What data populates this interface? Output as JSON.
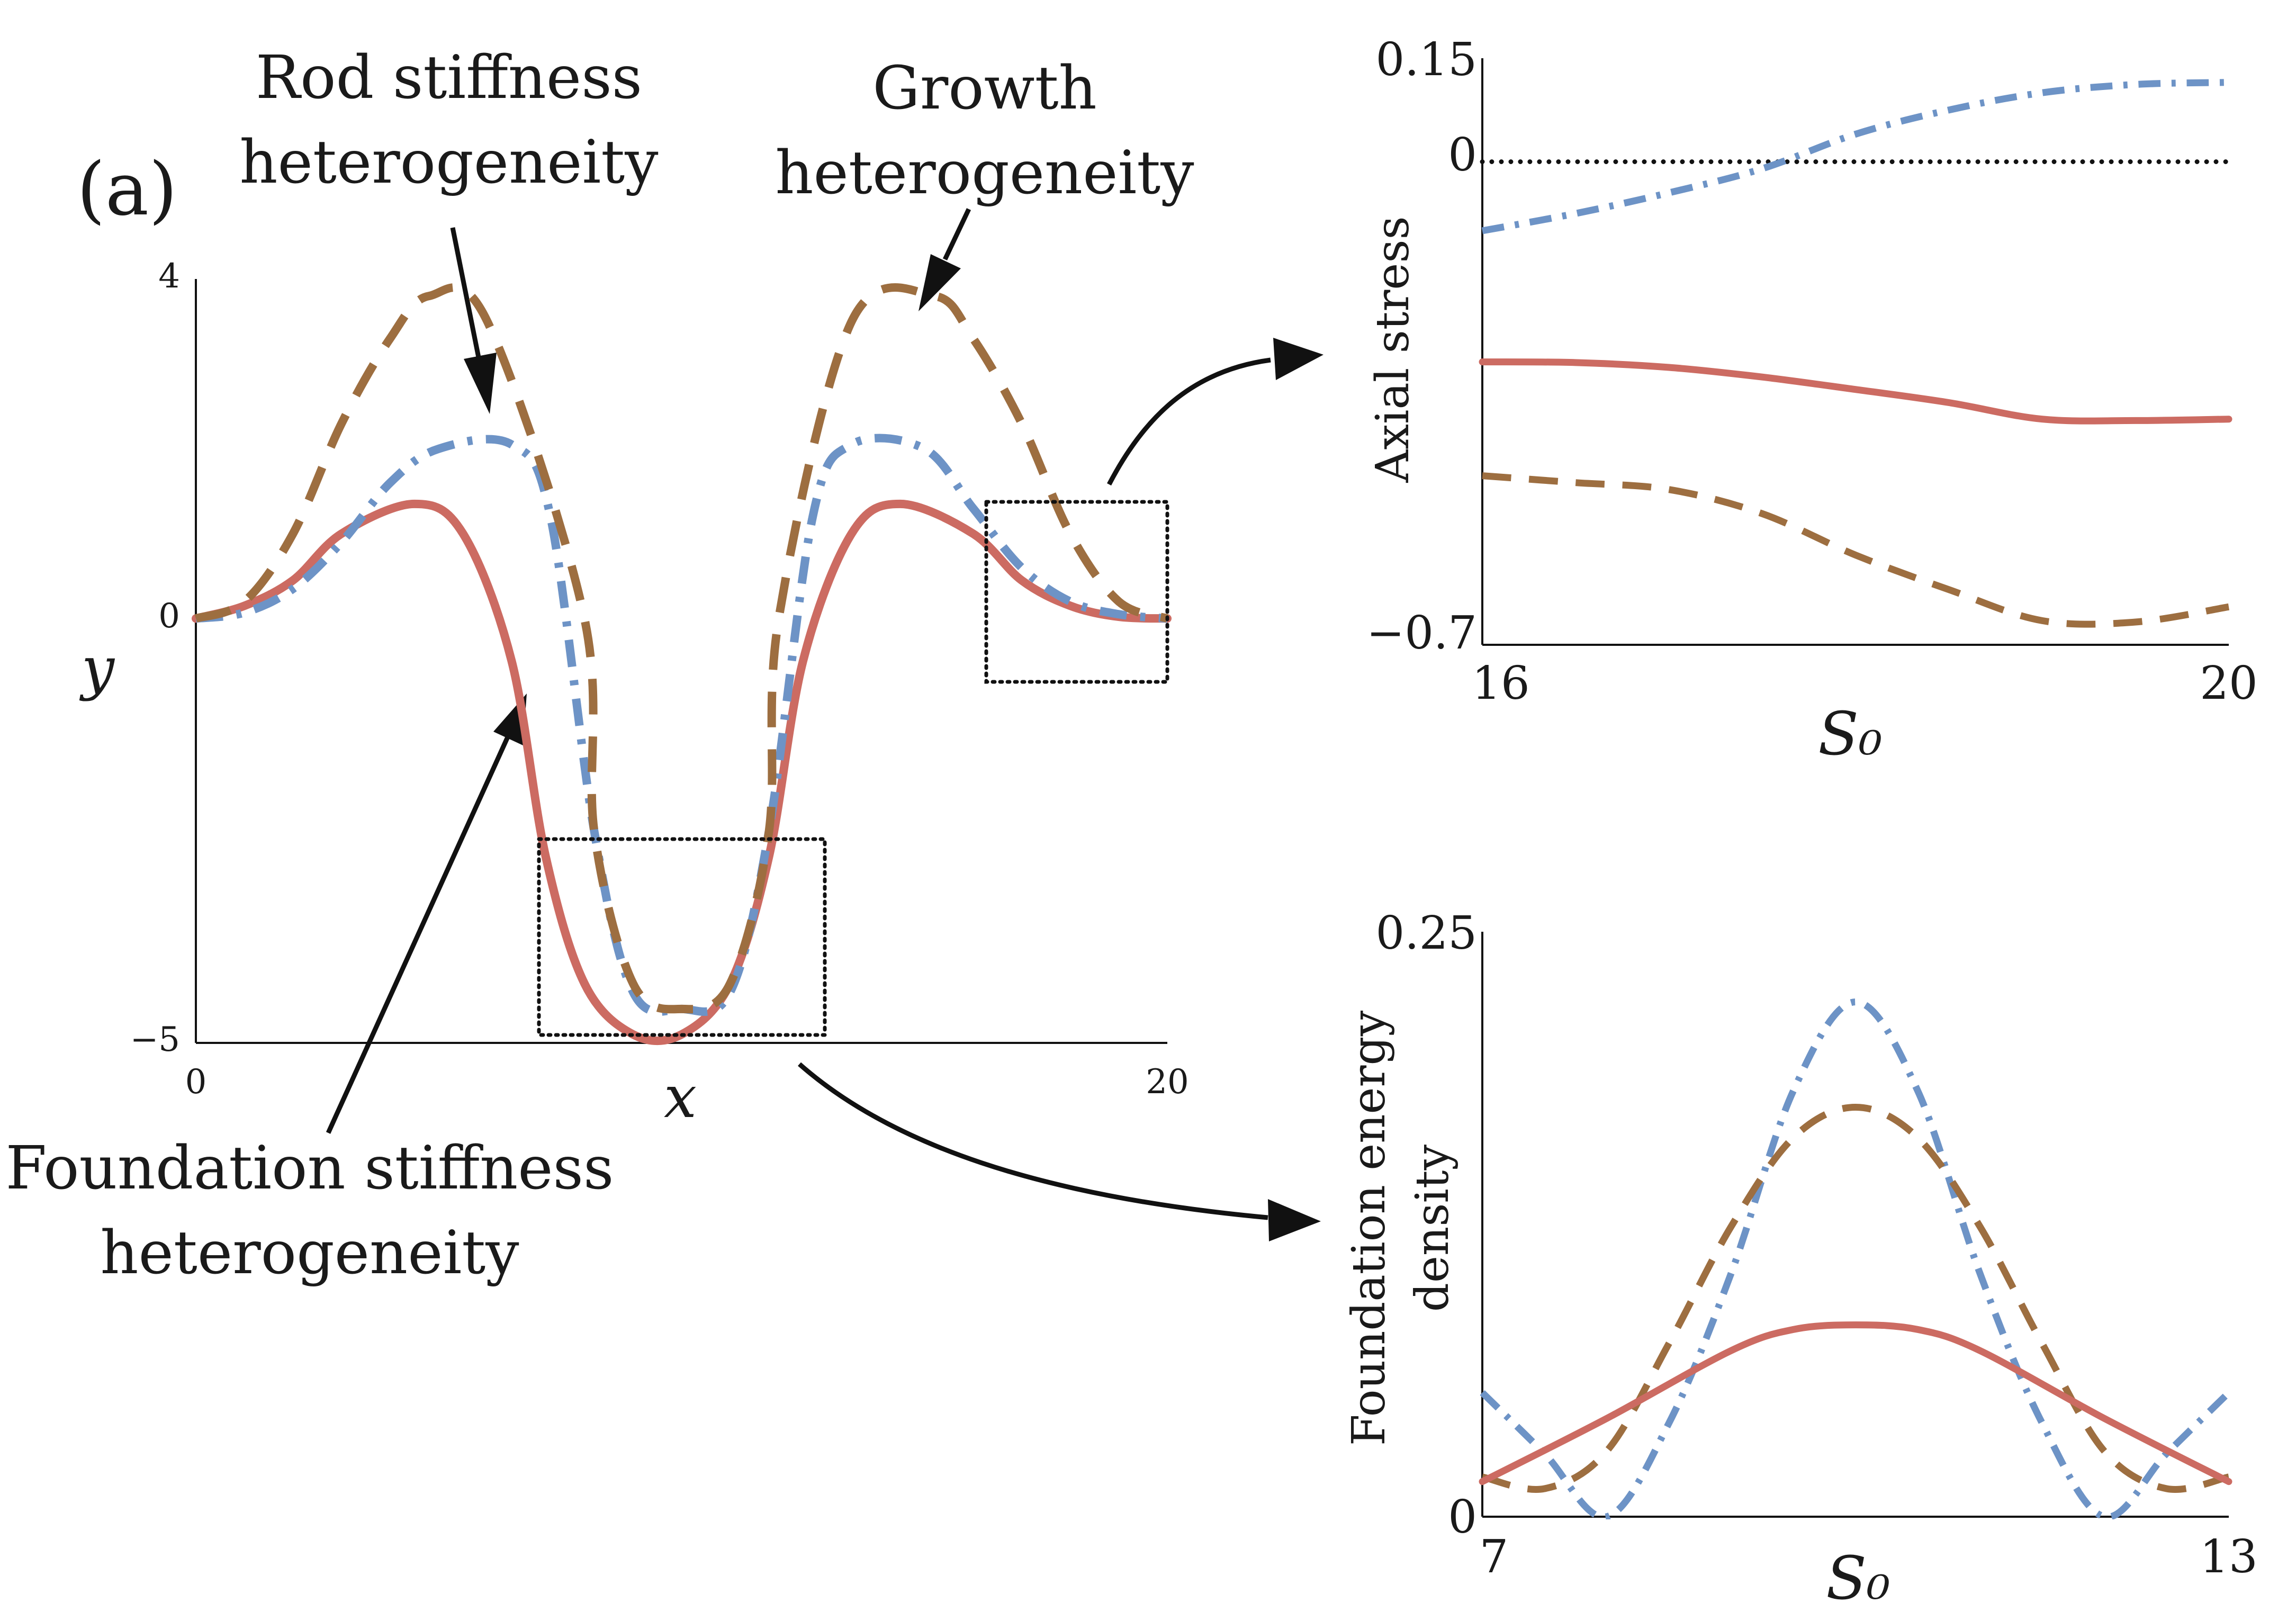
{
  "figure": {
    "panel_label": "(a)",
    "colors": {
      "foundation": "#cc6b62",
      "rod": "#6d93c6",
      "growth": "#9d6e40",
      "reference": "#111111"
    },
    "annotations": {
      "rod": [
        "Rod stiffness",
        "heterogeneity"
      ],
      "growth": [
        "Growth",
        "heterogeneity"
      ],
      "foundation": [
        "Foundation stiffness",
        "heterogeneity"
      ]
    }
  },
  "chart_data": [
    {
      "id": "main",
      "type": "line",
      "title": "",
      "xlabel": "x",
      "ylabel": "y",
      "xlim": [
        0,
        20
      ],
      "ylim": [
        -5,
        4
      ],
      "xticks": [
        "0",
        "20"
      ],
      "yticks": [
        "4",
        "0",
        "−5"
      ],
      "series": [
        {
          "key": "foundation",
          "color": "#cc6b62",
          "style": "solid",
          "points": [
            [
              0,
              0
            ],
            [
              1,
              0.15
            ],
            [
              2,
              0.45
            ],
            [
              3,
              1.0
            ],
            [
              4.5,
              1.35
            ],
            [
              5.5,
              1.0
            ],
            [
              6.5,
              -0.5
            ],
            [
              7.2,
              -2.8
            ],
            [
              8,
              -4.3
            ],
            [
              9,
              -4.9
            ],
            [
              10,
              -4.9
            ],
            [
              11,
              -4.3
            ],
            [
              11.8,
              -2.8
            ],
            [
              12.5,
              -0.5
            ],
            [
              13.5,
              1.0
            ],
            [
              14.5,
              1.35
            ],
            [
              16,
              1.0
            ],
            [
              17,
              0.45
            ],
            [
              18,
              0.15
            ],
            [
              19,
              0.02
            ],
            [
              20,
              0
            ]
          ]
        },
        {
          "key": "rod",
          "color": "#6d93c6",
          "style": "dashdot",
          "points": [
            [
              0,
              0
            ],
            [
              1,
              0.07
            ],
            [
              2,
              0.35
            ],
            [
              3,
              0.9
            ],
            [
              4,
              1.6
            ],
            [
              5,
              2.0
            ],
            [
              6.5,
              2.05
            ],
            [
              7.3,
              1.2
            ],
            [
              8.2,
              -2.5
            ],
            [
              9,
              -4.4
            ],
            [
              10,
              -4.6
            ],
            [
              11,
              -4.4
            ],
            [
              11.8,
              -2.5
            ],
            [
              12.7,
              1.2
            ],
            [
              13.5,
              2.05
            ],
            [
              15,
              2.0
            ],
            [
              16,
              1.3
            ],
            [
              17,
              0.6
            ],
            [
              18,
              0.2
            ],
            [
              19,
              0.05
            ],
            [
              20,
              0
            ]
          ]
        },
        {
          "key": "growth",
          "color": "#9d6e40",
          "style": "dashed",
          "points": [
            [
              0,
              0
            ],
            [
              1,
              0.2
            ],
            [
              2,
              1.0
            ],
            [
              3,
              2.3
            ],
            [
              4,
              3.3
            ],
            [
              4.8,
              3.8
            ],
            [
              6,
              3.5
            ],
            [
              8.0,
              0
            ],
            [
              8.2,
              -2.5
            ],
            [
              9,
              -4.3
            ],
            [
              10,
              -4.6
            ],
            [
              11,
              -4.3
            ],
            [
              11.8,
              -2.5
            ],
            [
              12.0,
              0
            ],
            [
              13.5,
              3.5
            ],
            [
              15.2,
              3.8
            ],
            [
              16,
              3.3
            ],
            [
              17,
              2.3
            ],
            [
              18,
              1.0
            ],
            [
              19,
              0.2
            ],
            [
              20,
              0
            ]
          ]
        }
      ]
    },
    {
      "id": "stress",
      "type": "line",
      "title": "",
      "xlabel": "S₀",
      "ylabel": "Axial stress",
      "xlim": [
        16,
        20
      ],
      "ylim": [
        -0.7,
        0.15
      ],
      "xticks": [
        "16",
        "20"
      ],
      "yticks": [
        "0.15",
        "0",
        "−0.7"
      ],
      "series": [
        {
          "key": "reference",
          "color": "#111111",
          "style": "dotted",
          "points": [
            [
              16,
              0
            ],
            [
              20,
              0
            ]
          ]
        },
        {
          "key": "rod",
          "color": "#6d93c6",
          "style": "dashdot",
          "points": [
            [
              16,
              -0.1
            ],
            [
              16.5,
              -0.075
            ],
            [
              17,
              -0.045
            ],
            [
              17.5,
              -0.01
            ],
            [
              18,
              0.04
            ],
            [
              18.5,
              0.075
            ],
            [
              19,
              0.1
            ],
            [
              19.5,
              0.112
            ],
            [
              20,
              0.115
            ]
          ]
        },
        {
          "key": "foundation",
          "color": "#cc6b62",
          "style": "solid",
          "points": [
            [
              16,
              -0.29
            ],
            [
              16.5,
              -0.291
            ],
            [
              17,
              -0.298
            ],
            [
              17.5,
              -0.312
            ],
            [
              18,
              -0.33
            ],
            [
              18.5,
              -0.349
            ],
            [
              19,
              -0.373
            ],
            [
              19.5,
              -0.375
            ],
            [
              20,
              -0.373
            ]
          ]
        },
        {
          "key": "growth",
          "color": "#9d6e40",
          "style": "dashed",
          "points": [
            [
              16,
              -0.455
            ],
            [
              16.5,
              -0.465
            ],
            [
              17,
              -0.475
            ],
            [
              17.5,
              -0.51
            ],
            [
              18,
              -0.57
            ],
            [
              18.5,
              -0.62
            ],
            [
              19,
              -0.665
            ],
            [
              19.5,
              -0.667
            ],
            [
              20,
              -0.645
            ]
          ]
        }
      ]
    },
    {
      "id": "energy",
      "type": "line",
      "title": "",
      "xlabel": "S₀",
      "ylabel": [
        "Foundation energy",
        "density"
      ],
      "xlim": [
        7,
        13
      ],
      "ylim": [
        0,
        0.25
      ],
      "xticks": [
        "7",
        "13"
      ],
      "yticks": [
        "0.25",
        "0"
      ],
      "series": [
        {
          "key": "rod",
          "color": "#6d93c6",
          "style": "dashdot",
          "points": [
            [
              7,
              0.053
            ],
            [
              7.5,
              0.027
            ],
            [
              8,
              0.0
            ],
            [
              8.5,
              0.04
            ],
            [
              9,
              0.104
            ],
            [
              9.5,
              0.182
            ],
            [
              10,
              0.22
            ],
            [
              10.5,
              0.182
            ],
            [
              11,
              0.104
            ],
            [
              11.5,
              0.04
            ],
            [
              12,
              0.0
            ],
            [
              12.5,
              0.027
            ],
            [
              13,
              0.053
            ]
          ]
        },
        {
          "key": "growth",
          "color": "#9d6e40",
          "style": "dashed",
          "points": [
            [
              7,
              0.017
            ],
            [
              7.5,
              0.012
            ],
            [
              8,
              0.028
            ],
            [
              8.5,
              0.074
            ],
            [
              9,
              0.124
            ],
            [
              9.5,
              0.162
            ],
            [
              10,
              0.175
            ],
            [
              10.5,
              0.162
            ],
            [
              11,
              0.124
            ],
            [
              11.5,
              0.074
            ],
            [
              12,
              0.028
            ],
            [
              12.5,
              0.012
            ],
            [
              13,
              0.017
            ]
          ]
        },
        {
          "key": "foundation",
          "color": "#cc6b62",
          "style": "solid",
          "points": [
            [
              7,
              0.015
            ],
            [
              8,
              0.042
            ],
            [
              9,
              0.071
            ],
            [
              9.5,
              0.08
            ],
            [
              10,
              0.082
            ],
            [
              10.5,
              0.08
            ],
            [
              11,
              0.071
            ],
            [
              12,
              0.042
            ],
            [
              13,
              0.015
            ]
          ]
        }
      ]
    }
  ]
}
